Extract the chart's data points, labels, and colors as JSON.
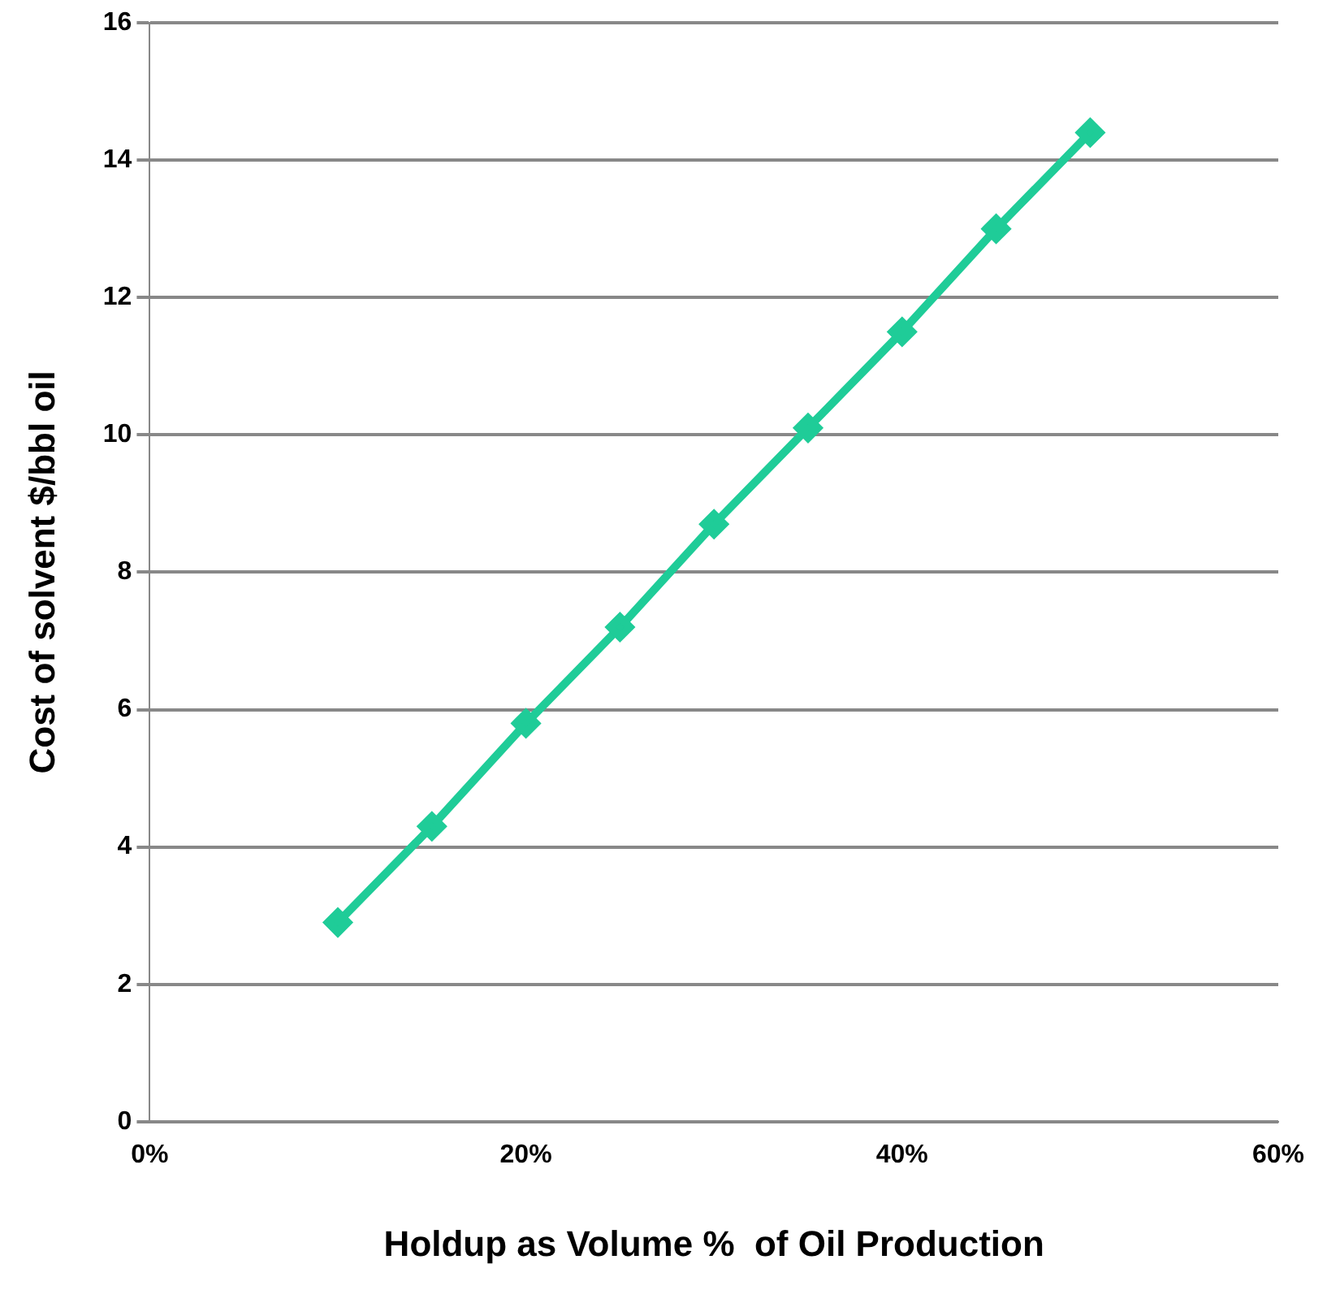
{
  "chart_data": {
    "type": "line",
    "xlabel": "Holdup as Volume %  of Oil Production",
    "ylabel": "Cost of solvent $/bbl oil",
    "x": [
      10,
      15,
      20,
      25,
      30,
      35,
      40,
      45,
      50
    ],
    "series": [
      {
        "color": "#1fcc98",
        "values": [
          2.9,
          4.3,
          5.8,
          7.2,
          8.7,
          10.1,
          11.5,
          13.0,
          14.4
        ]
      }
    ],
    "xlim": [
      0,
      60
    ],
    "xticks": [
      {
        "value": 0,
        "label": "0%"
      },
      {
        "value": 20,
        "label": "20%"
      },
      {
        "value": 40,
        "label": "40%"
      },
      {
        "value": 60,
        "label": "60%"
      }
    ],
    "ylim": [
      0,
      16
    ],
    "yticks": [
      0,
      2,
      4,
      6,
      8,
      10,
      12,
      14,
      16
    ],
    "grid": "y",
    "legend": false,
    "marker": "diamond",
    "line_style": "solid"
  }
}
